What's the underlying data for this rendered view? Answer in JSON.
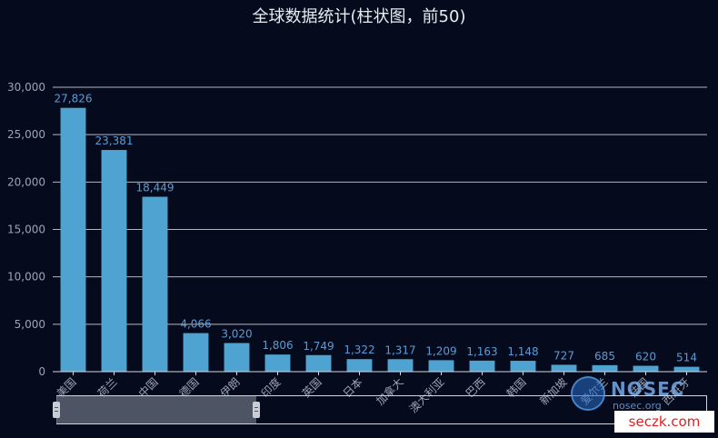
{
  "chart_data": {
    "type": "bar",
    "title": "全球数据统计(柱状图，前50)",
    "categories": [
      "美国",
      "荷兰",
      "中国",
      "德国",
      "伊朗",
      "印度",
      "英国",
      "日本",
      "加拿大",
      "澳大利亚",
      "巴西",
      "韩国",
      "新加坡",
      "爱尔兰",
      "法国",
      "西班牙"
    ],
    "values": [
      27826,
      23381,
      18449,
      4066,
      3020,
      1806,
      1749,
      1322,
      1317,
      1209,
      1163,
      1148,
      727,
      685,
      620,
      514
    ],
    "value_labels": [
      "27,826",
      "23,381",
      "18,449",
      "4,066",
      "3,020",
      "1,806",
      "1,749",
      "1,322",
      "1,317",
      "1,209",
      "1,163",
      "1,148",
      "727",
      "685",
      "620",
      "514"
    ],
    "ylim": [
      0,
      30000
    ],
    "yticks": [
      0,
      5000,
      10000,
      15000,
      20000,
      25000,
      30000
    ],
    "ytick_labels": [
      "0",
      "5,000",
      "10,000",
      "15,000",
      "20,000",
      "25,000",
      "30,000"
    ],
    "xlabel": "",
    "ylabel": "",
    "grid": true,
    "colors": {
      "bar": "#4fa3d1",
      "label": "#5b9bd5",
      "grid": "#cfd6e0",
      "axis_text": "#9aa5b4"
    }
  },
  "watermark": {
    "brand": "NOSEC",
    "site": "nosec.org"
  },
  "corner_badge": {
    "text": "seczk.com"
  }
}
